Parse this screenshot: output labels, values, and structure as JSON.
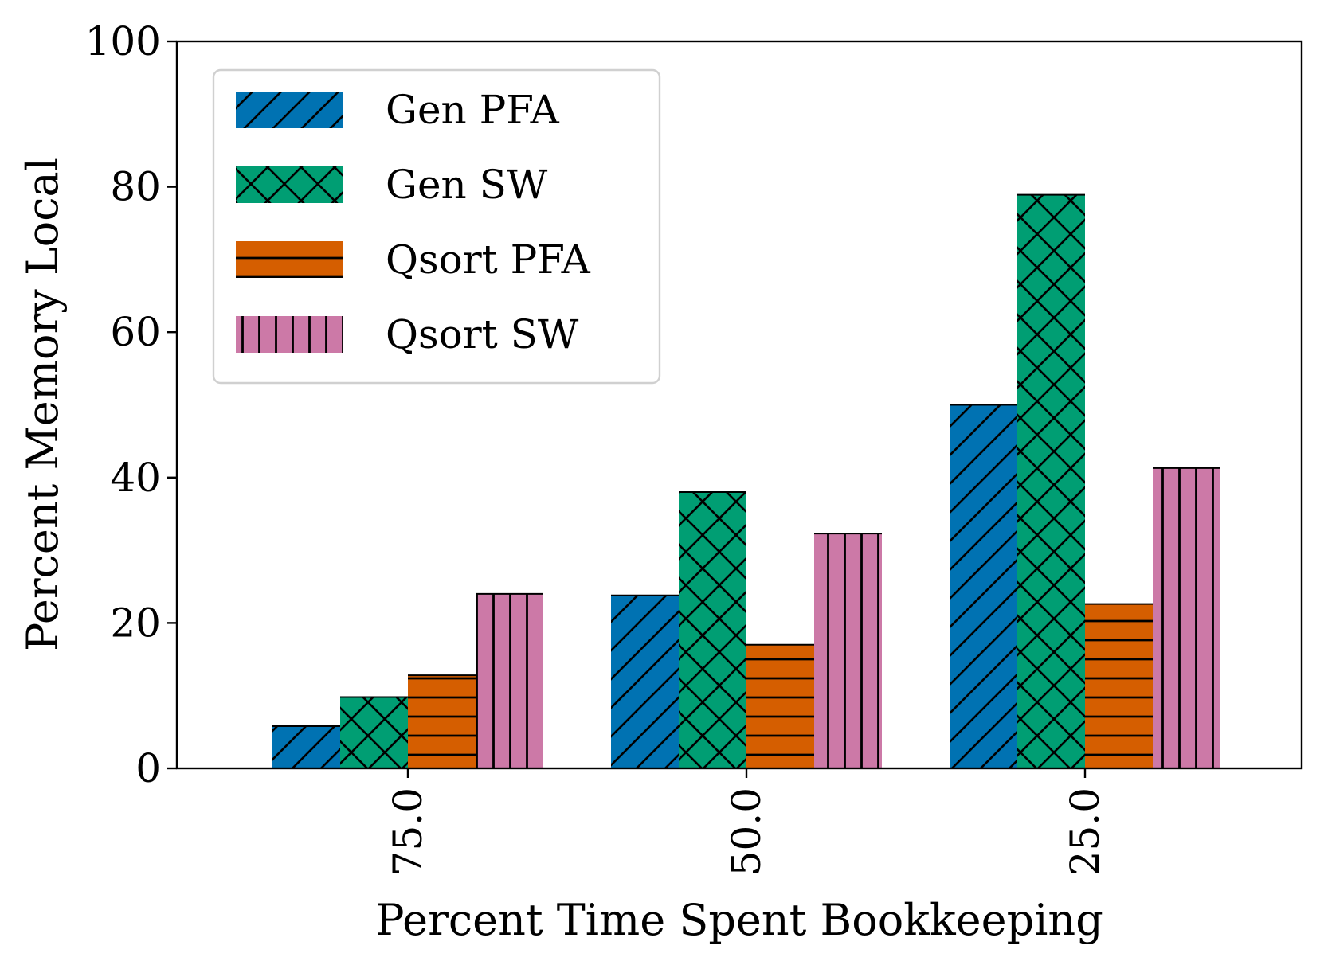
{
  "chart_data": {
    "type": "bar",
    "title": "",
    "xlabel": "Percent Time Spent Bookkeeping",
    "ylabel": "Percent Memory Local",
    "categories": [
      "75.0",
      "50.0",
      "25.0"
    ],
    "ylim": [
      0,
      100
    ],
    "yticks": [
      "0",
      "20",
      "40",
      "60",
      "80",
      "100"
    ],
    "grid": false,
    "legend_position": "top-left",
    "series": [
      {
        "name": "Gen PFA",
        "values": [
          5.8,
          23.8,
          50.0
        ],
        "color": "#0072b2",
        "hatch": "diagonal"
      },
      {
        "name": "Gen SW",
        "values": [
          9.8,
          38.0,
          78.9
        ],
        "color": "#009e73",
        "hatch": "crosshatch"
      },
      {
        "name": "Qsort PFA",
        "values": [
          12.8,
          17.0,
          22.6
        ],
        "color": "#d55e00",
        "hatch": "horizontal"
      },
      {
        "name": "Qsort SW",
        "values": [
          24.0,
          32.3,
          41.3
        ],
        "color": "#cc79a7",
        "hatch": "vertical"
      }
    ]
  }
}
